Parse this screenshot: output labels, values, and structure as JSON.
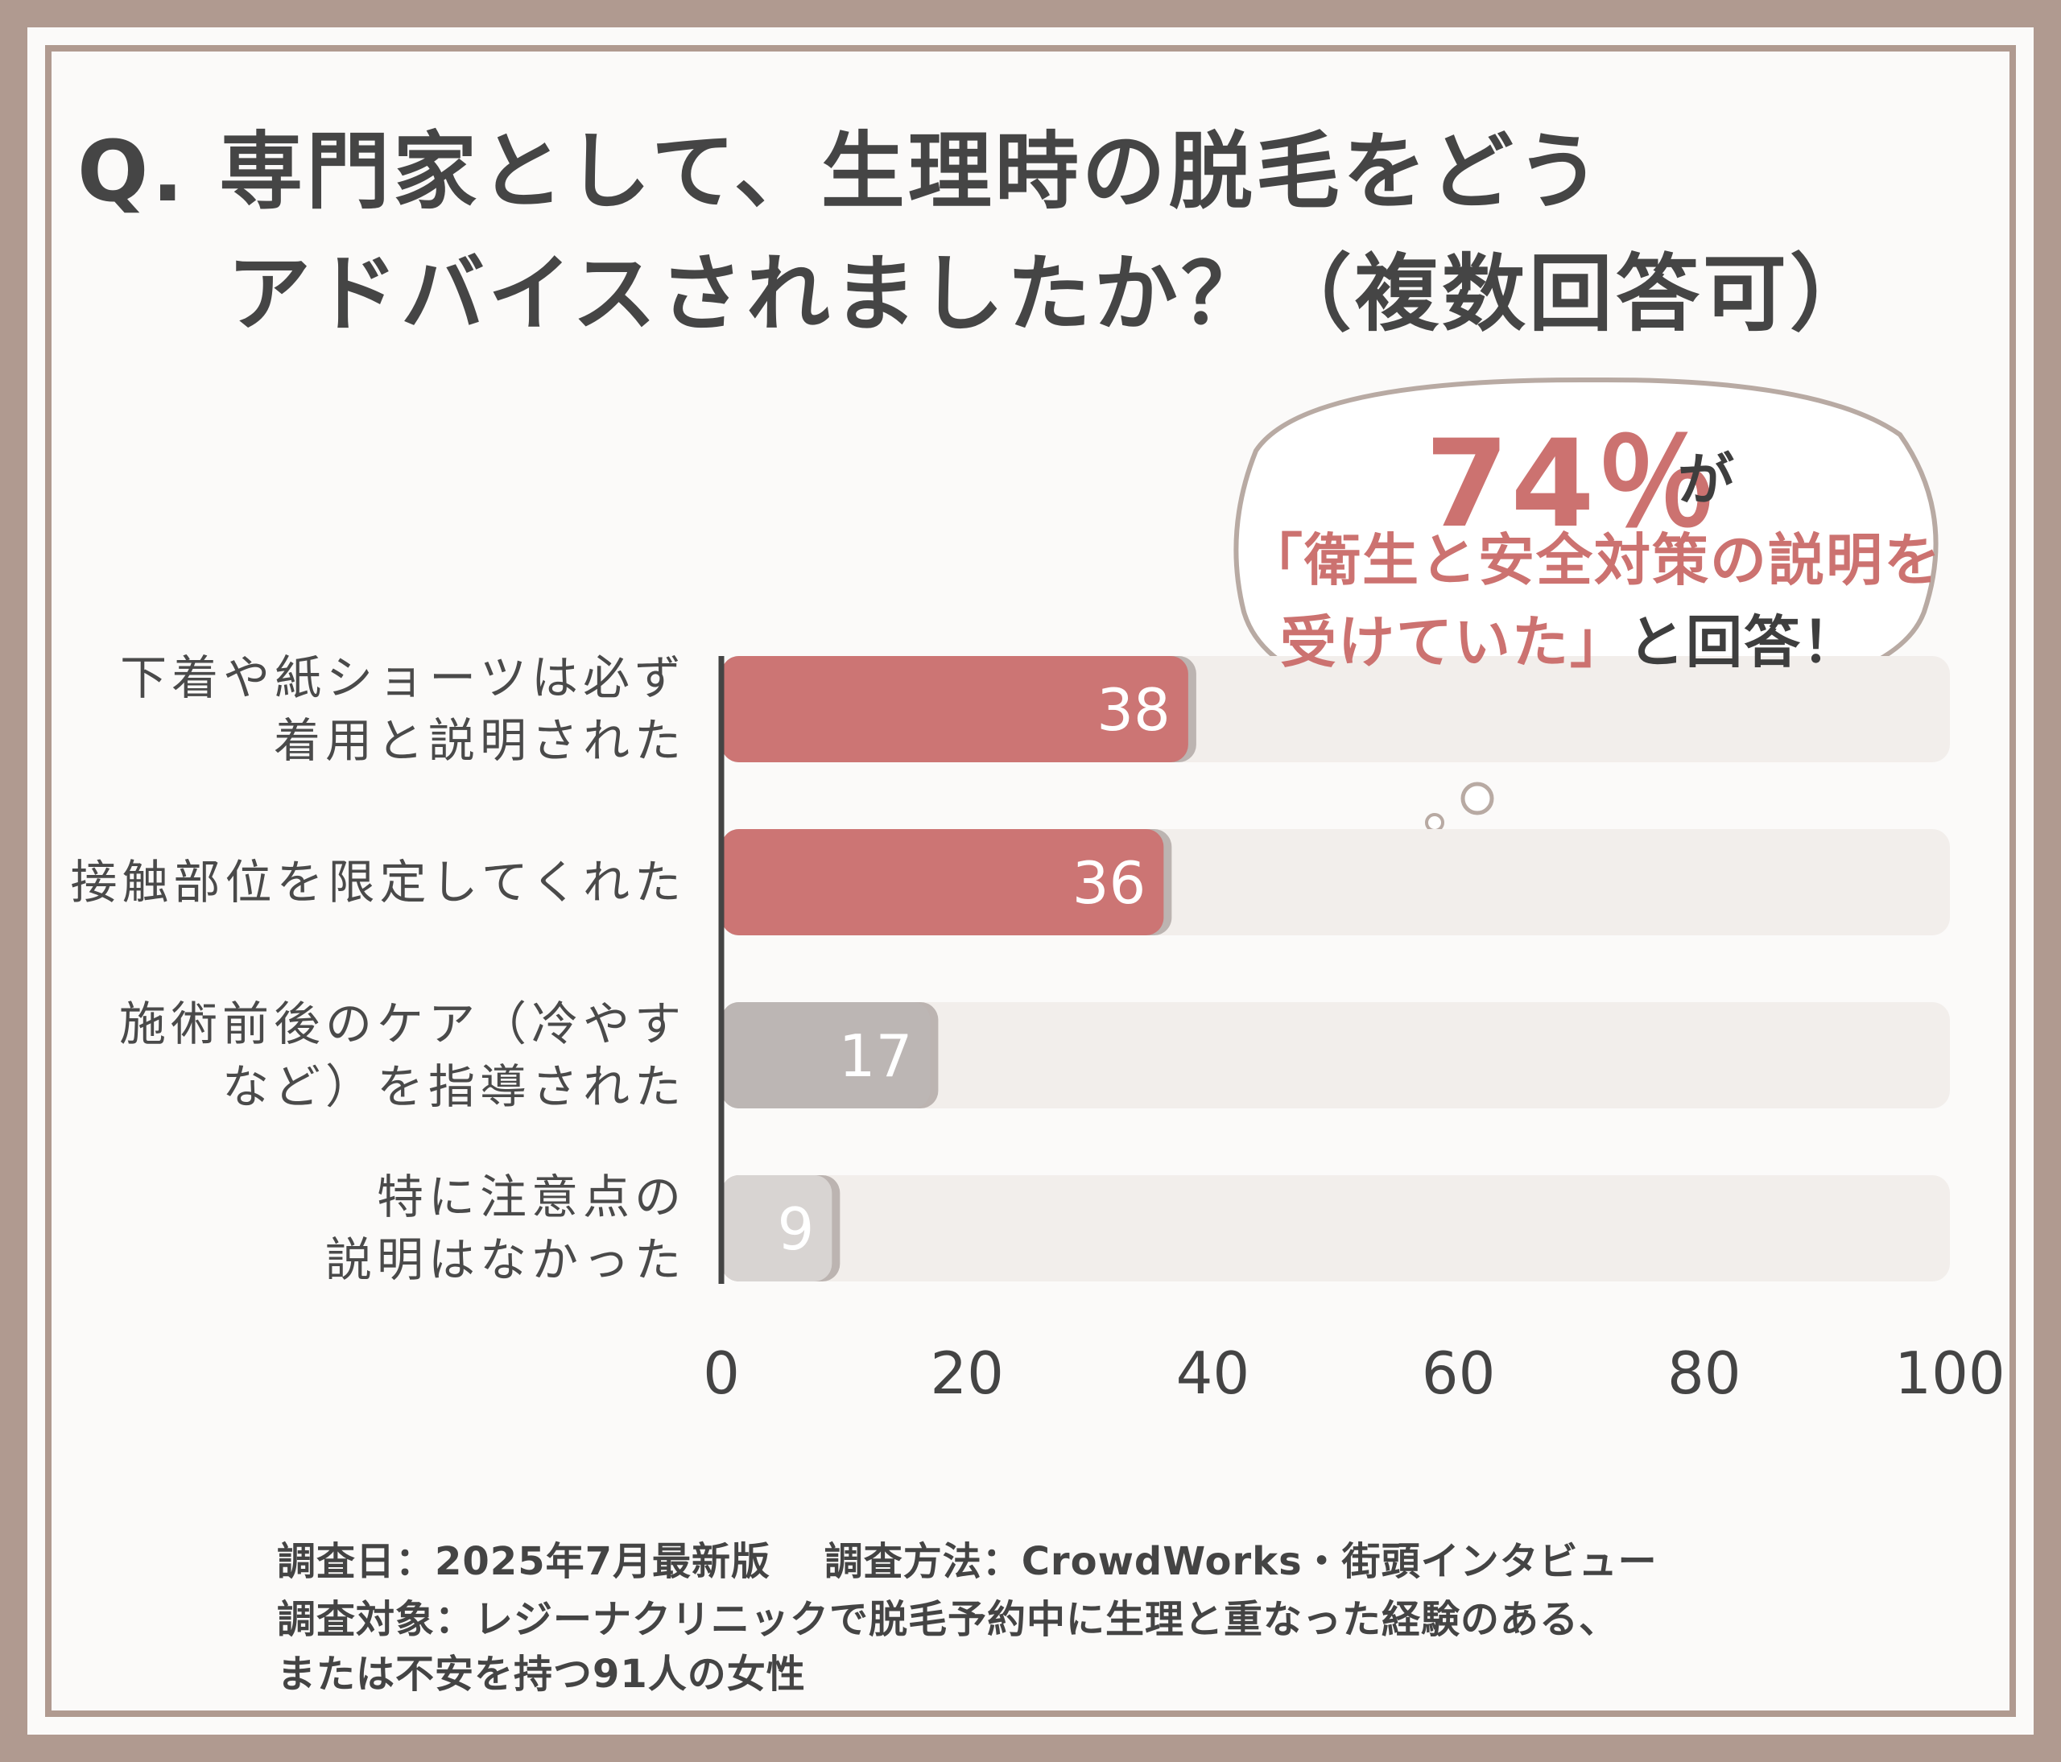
{
  "title_line1": "Q. 専門家として、生理時の脱毛をどう",
  "title_line2": "アドバイスされましたか？（複数回答可）",
  "callout": {
    "percent": "74％",
    "ga": "が",
    "line1": "「衛生と安全対策の説明を",
    "line2_red": "受けていた」",
    "line2_dark": "と回答！"
  },
  "footer": {
    "line1": "調査日：2025年7月最新版　 調査方法：CrowdWorks・街頭インタビュー",
    "line2": "調査対象：レジーナクリニックで脱毛予約中に生理と重なった経験のある、",
    "line3": "または不安を持つ91人の女性"
  },
  "chart_data": {
    "type": "bar",
    "orientation": "horizontal",
    "categories": [
      "下着や紙ショーツは必ず\n着用と説明された",
      "接触部位を限定してくれた",
      "施術前後のケア（冷やす\nなど）を指導された",
      "特に注意点の\n説明はなかった"
    ],
    "values": [
      38,
      36,
      17,
      9
    ],
    "bar_colors": [
      "#cc7574",
      "#cc7574",
      "#bcb6b4",
      "#d8d4d2"
    ],
    "track_color": "#f2eeeb",
    "xlim": [
      0,
      100
    ],
    "xticks": [
      "0",
      "20",
      "40",
      "60",
      "80",
      "100"
    ],
    "grid": false,
    "data_labels": true
  }
}
